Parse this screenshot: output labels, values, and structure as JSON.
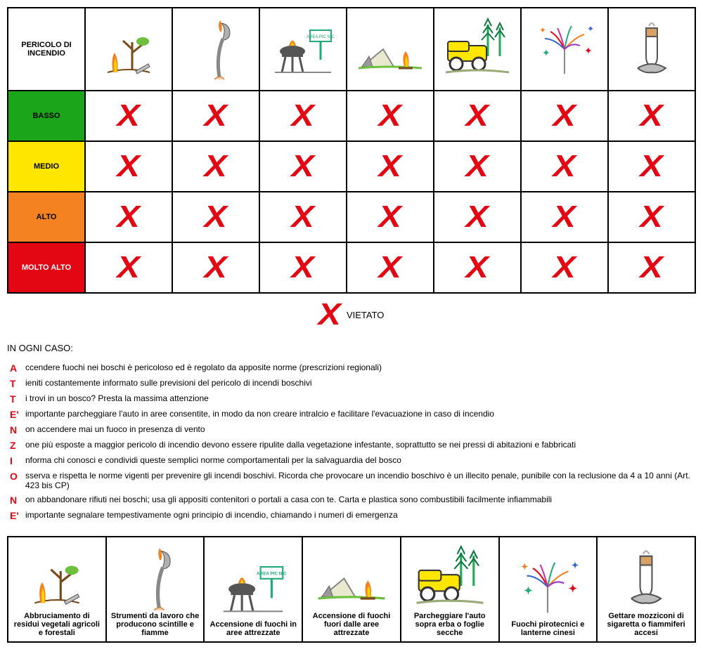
{
  "table_header_label": "PERICOLO DI INCENDIO",
  "levels": [
    {
      "key": "basso",
      "label": "BASSO",
      "bg": "#1aa51a",
      "fg": "#000000"
    },
    {
      "key": "medio",
      "label": "MEDIO",
      "bg": "#ffe600",
      "fg": "#000000"
    },
    {
      "key": "alto",
      "label": "ALTO",
      "bg": "#f58220",
      "fg": "#000000"
    },
    {
      "key": "molto",
      "label": "MOLTO ALTO",
      "bg": "#e30613",
      "fg": "#ffffff"
    }
  ],
  "activities": [
    {
      "key": "abbruciamento",
      "caption": "Abbruciamento di residui vegetali agricoli e forestali"
    },
    {
      "key": "strumenti",
      "caption": "Strumenti da lavoro che producono scintille e fiamme"
    },
    {
      "key": "picnic",
      "caption": "Accensione di fuochi in aree attrezzate"
    },
    {
      "key": "fuori",
      "caption": "Accensione di fuochi fuori dalle aree attrezzate"
    },
    {
      "key": "auto",
      "caption": "Parcheggiare l'auto sopra erba o foglie secche"
    },
    {
      "key": "pirotecnici",
      "caption": "Fuochi pirotecnici e lanterne cinesi"
    },
    {
      "key": "mozziconi",
      "caption": "Gettare mozziconi di sigaretta o fiammiferi accesi"
    }
  ],
  "grid_values": [
    [
      "X",
      "X",
      "X",
      "X",
      "X",
      "X",
      "X"
    ],
    [
      "X",
      "X",
      "X",
      "X",
      "X",
      "X",
      "X"
    ],
    [
      "X",
      "X",
      "X",
      "X",
      "X",
      "X",
      "X"
    ],
    [
      "X",
      "X",
      "X",
      "X",
      "X",
      "X",
      "X"
    ]
  ],
  "legend_x_label": "VIETATO",
  "section_title": "IN OGNI CASO:",
  "acrostic": [
    {
      "letter": "A",
      "text": "ccendere fuochi nei boschi è pericoloso ed è regolato da apposite norme (prescrizioni regionali)"
    },
    {
      "letter": "T",
      "text": "ieniti costantemente informato sulle previsioni del pericolo di incendi boschivi"
    },
    {
      "letter": "T",
      "text": "i trovi in un bosco? Presta la massima attenzione"
    },
    {
      "letter": "E'",
      "text": "importante parcheggiare l'auto in aree consentite, in modo da non creare intralcio e facilitare l'evacuazione in caso di incendio"
    },
    {
      "letter": "N",
      "text": "on accendere mai un fuoco in presenza di vento"
    },
    {
      "letter": "Z",
      "text": "one più esposte a maggior pericolo di incendio devono essere ripulite dalla vegetazione infestante, soprattutto se nei pressi di abitazioni e fabbricati"
    },
    {
      "letter": "I",
      "text": "nforma chi conosci e condividi queste semplici norme comportamentali per la salvaguardia del bosco"
    },
    {
      "letter": "O",
      "text": "sserva e rispetta le norme vigenti per prevenire gli incendi boschivi. Ricorda che provocare un incendio boschivo è un illecito penale, punibile con la reclusione da 4 a 10 anni (Art. 423 bis CP)"
    },
    {
      "letter": "N",
      "text": "on abbandonare rifiuti nei boschi; usa gli appositi contenitori o portali a casa con te. Carta e plastica sono combustibili facilmente infiammabili"
    },
    {
      "letter": "E'",
      "text": "importante segnalare tempestivamente ogni principio di incendio, chiamando i numeri di emergenza"
    }
  ],
  "colors": {
    "x_mark": "#e30613",
    "border": "#000000",
    "acro_letter": "#e30613"
  }
}
